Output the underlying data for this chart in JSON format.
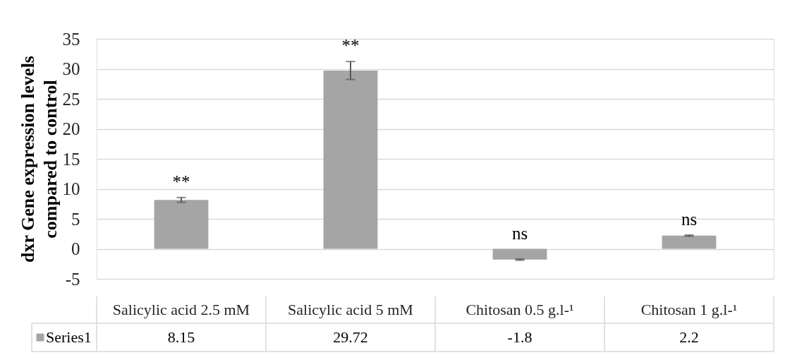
{
  "chart_data": {
    "type": "bar",
    "ylabel": "dxr Gene expression levels\ncompared to control",
    "categories": [
      "Salicylic acid 2.5 mM",
      "Salicylic acid 5 mM",
      "Chitosan 0.5 g.l-¹",
      "Chitosan 1  g.l-¹"
    ],
    "series": [
      {
        "name": "Series1",
        "color": "#a5a5a5",
        "values": [
          8.15,
          29.72,
          -1.8,
          2.2
        ],
        "errors": [
          0.4,
          1.5,
          0.1,
          0.1
        ]
      }
    ],
    "ylim": [
      -5,
      35
    ],
    "yticks": [
      -5,
      0,
      5,
      10,
      15,
      20,
      25,
      30,
      35
    ],
    "grid": "y",
    "legend": "bottom left",
    "data_labels": true,
    "annotations": [
      "**",
      "**",
      "ns",
      "ns"
    ]
  }
}
